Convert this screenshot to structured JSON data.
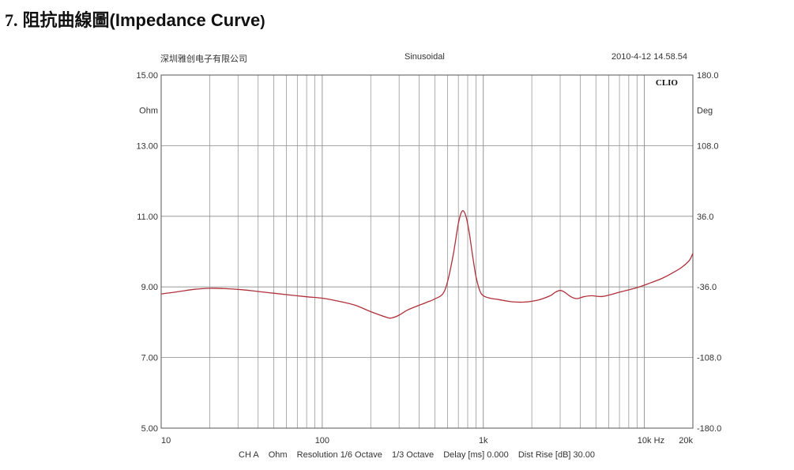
{
  "heading": {
    "number": "7.",
    "title": "阻抗曲線圖",
    "subtitle": "(Impedance Curve",
    "close_paren": ")"
  },
  "header": {
    "company": "深圳雅创电子有限公司",
    "mode": "Sinusoidal",
    "timestamp": "2010-4-12 14.58.54",
    "brand": "CLIO"
  },
  "footer": {
    "channel": "CH A",
    "unit": "Ohm",
    "resolution": "Resolution 1/6 Octave",
    "smoothing": "1/3 Octave",
    "delay": "Delay [ms] 0.000",
    "dist_rise": "Dist Rise [dB] 30.00"
  },
  "colors": {
    "curve": "#b0303a",
    "grid": "#8a8a8a",
    "frame": "#555555"
  },
  "chart_data": {
    "type": "line",
    "title": "",
    "xscale": "log",
    "xlim": [
      10,
      20000
    ],
    "ylim": [
      5,
      15
    ],
    "y2lim": [
      -180,
      180
    ],
    "grid": true,
    "left_axis_unit": "Ohm",
    "right_axis_unit": "Deg",
    "x_ticks": [
      {
        "value": 10,
        "label": "10"
      },
      {
        "value": 100,
        "label": "100"
      },
      {
        "value": 1000,
        "label": "1k"
      },
      {
        "value": 10000,
        "label": "10k"
      },
      {
        "value": 20000,
        "label": "20k"
      }
    ],
    "x_unit_label": "Hz",
    "y_ticks": [
      {
        "value": 15,
        "label": "15.00"
      },
      {
        "value": 13,
        "label": "13.00"
      },
      {
        "value": 11,
        "label": "11.00"
      },
      {
        "value": 9,
        "label": "9.00"
      },
      {
        "value": 7,
        "label": "7.00"
      },
      {
        "value": 5,
        "label": "5.00"
      }
    ],
    "y2_ticks": [
      {
        "value": 180,
        "label": "180.0"
      },
      {
        "value": 108,
        "label": "108.0"
      },
      {
        "value": 36,
        "label": "36.0"
      },
      {
        "value": -36,
        "label": "-36.0"
      },
      {
        "value": -108,
        "label": "-108.0"
      },
      {
        "value": -180,
        "label": "-180.0"
      }
    ],
    "series": [
      {
        "color": "#b0303a",
        "x": [
          10,
          13,
          16,
          20,
          25,
          32,
          40,
          50,
          63,
          80,
          100,
          125,
          160,
          200,
          250,
          270,
          300,
          340,
          400,
          450,
          500,
          560,
          600,
          650,
          700,
          740,
          780,
          820,
          860,
          900,
          950,
          1000,
          1100,
          1250,
          1500,
          1800,
          2200,
          2600,
          2800,
          3000,
          3200,
          3500,
          3800,
          4200,
          4700,
          5500,
          7000,
          9000,
          11000,
          13000,
          15000,
          17000,
          19000,
          20000
        ],
        "y": [
          8.8,
          8.87,
          8.93,
          8.96,
          8.95,
          8.92,
          8.87,
          8.82,
          8.77,
          8.72,
          8.68,
          8.6,
          8.48,
          8.3,
          8.14,
          8.12,
          8.2,
          8.35,
          8.48,
          8.57,
          8.66,
          8.8,
          9.15,
          9.9,
          10.8,
          11.15,
          11.0,
          10.5,
          9.85,
          9.3,
          8.9,
          8.75,
          8.68,
          8.64,
          8.58,
          8.57,
          8.63,
          8.75,
          8.85,
          8.9,
          8.85,
          8.72,
          8.67,
          8.72,
          8.75,
          8.73,
          8.85,
          8.98,
          9.12,
          9.25,
          9.4,
          9.55,
          9.75,
          9.95
        ]
      }
    ]
  }
}
